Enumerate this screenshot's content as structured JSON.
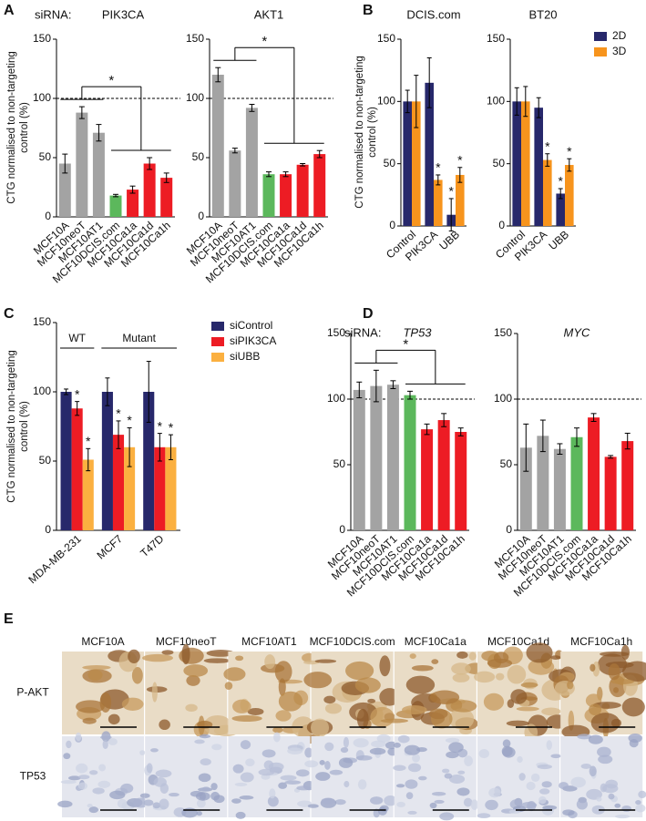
{
  "chart_data": [
    {
      "panel": "A",
      "type": "bar",
      "ylabel": "CTG normalised to non-targeting control (%)",
      "prefix": "siRNA:",
      "ylim": [
        0,
        150
      ],
      "yticks": [
        0,
        50,
        100,
        150
      ],
      "hline": 100,
      "categories": [
        "MCF10A",
        "MCF10neoT",
        "MCF10AT1",
        "MCF10DCIS.com",
        "MCF10Ca1a",
        "MCF10Ca1d",
        "MCF10Ca1h"
      ],
      "colors": [
        "#a3a3a3",
        "#a3a3a3",
        "#a3a3a3",
        "#5cb85c",
        "#ed1c24",
        "#ed1c24",
        "#ed1c24"
      ],
      "subplots": [
        {
          "title": "PIK3CA",
          "values": [
            45,
            88,
            71,
            18,
            23,
            45,
            33
          ],
          "errors": [
            8,
            5,
            7,
            1,
            3,
            5,
            4
          ],
          "bracket_label": "*"
        },
        {
          "title": "AKT1",
          "values": [
            120,
            56,
            92,
            36,
            36,
            44,
            53
          ],
          "errors": [
            6,
            2,
            3,
            2,
            2,
            1,
            3
          ],
          "bracket_label": "*"
        }
      ]
    },
    {
      "panel": "B",
      "type": "grouped_bar",
      "ylabel": "CTG normalised to non-targeting control (%)",
      "ylim": [
        0,
        150
      ],
      "yticks": [
        0,
        50,
        100,
        150
      ],
      "categories": [
        "Control",
        "PIK3CA",
        "UBB"
      ],
      "series": [
        {
          "name": "2D",
          "color": "#27286b"
        },
        {
          "name": "3D",
          "color": "#f7941d"
        }
      ],
      "subplots": [
        {
          "title": "DCIS.com",
          "values": [
            [
              100,
              115,
              9
            ],
            [
              100,
              37,
              41
            ]
          ],
          "errors": [
            [
              9,
              20,
              13
            ],
            [
              21,
              4,
              6
            ]
          ],
          "annotations": [
            [
              null,
              null,
              "*"
            ],
            [
              null,
              "*",
              "*"
            ]
          ]
        },
        {
          "title": "BT20",
          "values": [
            [
              100,
              95,
              26
            ],
            [
              100,
              53,
              49
            ]
          ],
          "errors": [
            [
              11,
              8,
              4
            ],
            [
              12,
              5,
              5
            ]
          ],
          "annotations": [
            [
              null,
              null,
              "*"
            ],
            [
              null,
              "*",
              "*"
            ]
          ]
        }
      ]
    },
    {
      "panel": "C",
      "type": "grouped_bar",
      "ylabel": "CTG normalised to non-targeting control (%)",
      "ylim": [
        0,
        150
      ],
      "yticks": [
        0,
        50,
        100,
        150
      ],
      "categories": [
        "MDA-MB-231",
        "MCF7",
        "T47D"
      ],
      "series": [
        {
          "name": "siControl",
          "color": "#27286b"
        },
        {
          "name": "siPIK3CA",
          "color": "#ed1c24"
        },
        {
          "name": "siUBB",
          "color": "#fbb040"
        }
      ],
      "subplots": [
        {
          "groups": [
            "WT",
            "Mutant"
          ],
          "values": [
            [
              100,
              100,
              100
            ],
            [
              88,
              69,
              60
            ],
            [
              51,
              60,
              60
            ]
          ],
          "errors": [
            [
              2,
              10,
              22
            ],
            [
              5,
              10,
              10
            ],
            [
              8,
              14,
              9
            ]
          ],
          "annotations": [
            [
              null,
              null,
              null
            ],
            [
              "*",
              "*",
              "*"
            ],
            [
              "*",
              "*",
              "*"
            ]
          ]
        }
      ]
    },
    {
      "panel": "D",
      "type": "bar",
      "prefix": "siRNA:",
      "title_italic": true,
      "ylim": [
        0,
        150
      ],
      "yticks": [
        0,
        50,
        100,
        150
      ],
      "hline": 100,
      "categories": [
        "MCF10A",
        "MCF10neoT",
        "MCF10AT1",
        "MCF10DCIS.com",
        "MCF10Ca1a",
        "MCF10Ca1d",
        "MCF10Ca1h"
      ],
      "colors": [
        "#a3a3a3",
        "#a3a3a3",
        "#a3a3a3",
        "#5cb85c",
        "#ed1c24",
        "#ed1c24",
        "#ed1c24"
      ],
      "subplots": [
        {
          "title": "TP53",
          "values": [
            107,
            110,
            111,
            103,
            77,
            84,
            75
          ],
          "errors": [
            6,
            12,
            3,
            3,
            4,
            5,
            3
          ],
          "bracket_label": "*"
        },
        {
          "title": "MYC",
          "values": [
            63,
            72,
            62,
            71,
            86,
            56,
            68
          ],
          "errors": [
            18,
            12,
            4,
            7,
            3,
            1,
            6
          ]
        }
      ]
    }
  ],
  "image_panel": {
    "panel": "E",
    "columns": [
      "MCF10A",
      "MCF10neoT",
      "MCF10AT1",
      "MCF10DCIS.com",
      "MCF10Ca1a",
      "MCF10Ca1d",
      "MCF10Ca1h"
    ],
    "rows": [
      "P-AKT",
      "TP53"
    ]
  }
}
